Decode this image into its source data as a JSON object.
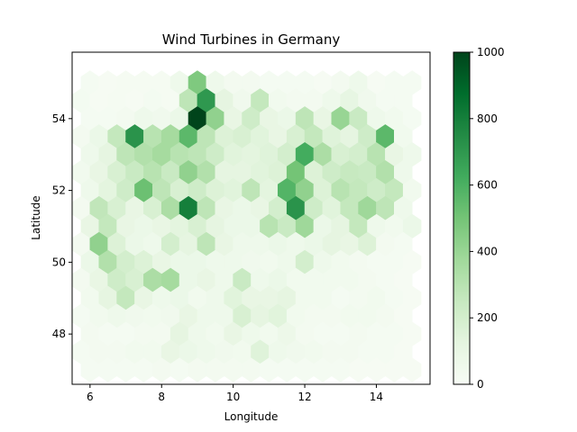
{
  "chart_data": {
    "type": "heatmap",
    "subtype": "hexbin",
    "title": "Wind Turbines in Germany",
    "xlabel": "Longitude",
    "ylabel": "Latitude",
    "xlim": [
      5.5,
      15.5
    ],
    "ylim": [
      46.6,
      55.85
    ],
    "xticks": [
      6,
      8,
      10,
      12,
      14
    ],
    "yticks": [
      48,
      50,
      52,
      54
    ],
    "grid": false,
    "colormap": "Greens",
    "color_range": [
      0,
      1000
    ],
    "colorbar": {
      "ticks": [
        0,
        200,
        400,
        600,
        800,
        1000
      ],
      "placement": "right"
    },
    "hex_spacing": {
      "dx": 0.5,
      "dy": 0.5
    },
    "cells": [
      [
        6,
        55,
        20
      ],
      [
        6.5,
        55,
        10
      ],
      [
        7,
        55,
        15
      ],
      [
        7.5,
        55,
        15
      ],
      [
        8,
        55,
        15
      ],
      [
        8.5,
        55,
        60
      ],
      [
        9,
        55,
        470
      ],
      [
        9.5,
        55,
        60
      ],
      [
        10,
        55,
        30
      ],
      [
        10.5,
        55,
        30
      ],
      [
        11,
        55,
        20
      ],
      [
        11.5,
        55,
        20
      ],
      [
        12,
        55,
        20
      ],
      [
        12.5,
        55,
        10
      ],
      [
        13,
        55,
        30
      ],
      [
        13.5,
        55,
        60
      ],
      [
        14,
        55,
        10
      ],
      [
        14.5,
        55,
        20
      ],
      [
        15,
        55,
        20
      ],
      [
        5.75,
        54.5,
        25
      ],
      [
        6.25,
        54.5,
        10
      ],
      [
        6.75,
        54.5,
        15
      ],
      [
        7.25,
        54.5,
        10
      ],
      [
        7.75,
        54.5,
        25
      ],
      [
        8.25,
        54.5,
        15
      ],
      [
        8.75,
        54.5,
        280
      ],
      [
        9.25,
        54.5,
        700
      ],
      [
        9.75,
        54.5,
        120
      ],
      [
        10.25,
        54.5,
        50
      ],
      [
        10.75,
        54.5,
        260
      ],
      [
        11.25,
        54.5,
        40
      ],
      [
        11.75,
        54.5,
        30
      ],
      [
        12.25,
        54.5,
        30
      ],
      [
        12.75,
        54.5,
        60
      ],
      [
        13.25,
        54.5,
        110
      ],
      [
        13.75,
        54.5,
        50
      ],
      [
        14.25,
        54.5,
        20
      ],
      [
        14.75,
        54.5,
        20
      ],
      [
        6,
        54,
        20
      ],
      [
        6.5,
        54,
        20
      ],
      [
        7,
        54,
        30
      ],
      [
        7.5,
        54,
        60
      ],
      [
        8,
        54,
        50
      ],
      [
        8.5,
        54,
        80
      ],
      [
        9,
        54,
        1000
      ],
      [
        9.5,
        54,
        420
      ],
      [
        10,
        54,
        100
      ],
      [
        10.5,
        54,
        220
      ],
      [
        11,
        54,
        100
      ],
      [
        11.5,
        54,
        80
      ],
      [
        12,
        54,
        280
      ],
      [
        12.5,
        54,
        100
      ],
      [
        13,
        54,
        400
      ],
      [
        13.5,
        54,
        240
      ],
      [
        14,
        54,
        60
      ],
      [
        14.5,
        54,
        40
      ],
      [
        15,
        54,
        20
      ],
      [
        5.75,
        53.5,
        30
      ],
      [
        6.25,
        53.5,
        80
      ],
      [
        6.75,
        53.5,
        260
      ],
      [
        7.25,
        53.5,
        720
      ],
      [
        7.75,
        53.5,
        300
      ],
      [
        8.25,
        53.5,
        360
      ],
      [
        8.75,
        53.5,
        560
      ],
      [
        9.25,
        53.5,
        280
      ],
      [
        9.75,
        53.5,
        160
      ],
      [
        10.25,
        53.5,
        180
      ],
      [
        10.75,
        53.5,
        140
      ],
      [
        11.25,
        53.5,
        100
      ],
      [
        11.75,
        53.5,
        180
      ],
      [
        12.25,
        53.5,
        260
      ],
      [
        12.75,
        53.5,
        150
      ],
      [
        13.25,
        53.5,
        120
      ],
      [
        13.75,
        53.5,
        220
      ],
      [
        14.25,
        53.5,
        560
      ],
      [
        14.75,
        53.5,
        40
      ],
      [
        6,
        53,
        60
      ],
      [
        6.5,
        53,
        120
      ],
      [
        7,
        53,
        280
      ],
      [
        7.5,
        53,
        320
      ],
      [
        8,
        53,
        360
      ],
      [
        8.5,
        53,
        300
      ],
      [
        9,
        53,
        280
      ],
      [
        9.5,
        53,
        220
      ],
      [
        10,
        53,
        140
      ],
      [
        10.5,
        53,
        130
      ],
      [
        11,
        53,
        150
      ],
      [
        11.5,
        53,
        200
      ],
      [
        12,
        53,
        620
      ],
      [
        12.5,
        53,
        340
      ],
      [
        13,
        53,
        180
      ],
      [
        13.5,
        53,
        200
      ],
      [
        14,
        53,
        300
      ],
      [
        14.5,
        53,
        100
      ],
      [
        15,
        53,
        60
      ],
      [
        5.75,
        52.5,
        40
      ],
      [
        6.25,
        52.5,
        100
      ],
      [
        6.75,
        52.5,
        180
      ],
      [
        7.25,
        52.5,
        240
      ],
      [
        7.75,
        52.5,
        300
      ],
      [
        8.25,
        52.5,
        240
      ],
      [
        8.75,
        52.5,
        420
      ],
      [
        9.25,
        52.5,
        320
      ],
      [
        9.75,
        52.5,
        120
      ],
      [
        10.25,
        52.5,
        120
      ],
      [
        10.75,
        52.5,
        140
      ],
      [
        11.25,
        52.5,
        160
      ],
      [
        11.75,
        52.5,
        500
      ],
      [
        12.25,
        52.5,
        160
      ],
      [
        12.75,
        52.5,
        220
      ],
      [
        13.25,
        52.5,
        250
      ],
      [
        13.75,
        52.5,
        240
      ],
      [
        14.25,
        52.5,
        320
      ],
      [
        14.75,
        52.5,
        60
      ],
      [
        6,
        52,
        60
      ],
      [
        6.5,
        52,
        130
      ],
      [
        7,
        52,
        220
      ],
      [
        7.5,
        52,
        520
      ],
      [
        8,
        52,
        280
      ],
      [
        8.5,
        52,
        180
      ],
      [
        9,
        52,
        220
      ],
      [
        9.5,
        52,
        160
      ],
      [
        10,
        52,
        140
      ],
      [
        10.5,
        52,
        280
      ],
      [
        11,
        52,
        130
      ],
      [
        11.5,
        52,
        580
      ],
      [
        12,
        52,
        420
      ],
      [
        12.5,
        52,
        160
      ],
      [
        13,
        52,
        300
      ],
      [
        13.5,
        52,
        260
      ],
      [
        14,
        52,
        220
      ],
      [
        14.5,
        52,
        260
      ],
      [
        15,
        52,
        40
      ],
      [
        5.75,
        51.5,
        30
      ],
      [
        6.25,
        51.5,
        270
      ],
      [
        6.75,
        51.5,
        180
      ],
      [
        7.25,
        51.5,
        100
      ],
      [
        7.75,
        51.5,
        180
      ],
      [
        8.25,
        51.5,
        340
      ],
      [
        8.75,
        51.5,
        800
      ],
      [
        9.25,
        51.5,
        280
      ],
      [
        9.75,
        51.5,
        100
      ],
      [
        10.25,
        51.5,
        80
      ],
      [
        10.75,
        51.5,
        100
      ],
      [
        11.25,
        51.5,
        200
      ],
      [
        11.75,
        51.5,
        720
      ],
      [
        12.25,
        51.5,
        220
      ],
      [
        12.75,
        51.5,
        140
      ],
      [
        13.25,
        51.5,
        260
      ],
      [
        13.75,
        51.5,
        380
      ],
      [
        14.25,
        51.5,
        280
      ],
      [
        14.75,
        51.5,
        60
      ],
      [
        6,
        51,
        100
      ],
      [
        6.5,
        51,
        260
      ],
      [
        7,
        51,
        100
      ],
      [
        7.5,
        51,
        80
      ],
      [
        8,
        51,
        100
      ],
      [
        8.5,
        51,
        130
      ],
      [
        9,
        51,
        180
      ],
      [
        9.5,
        51,
        120
      ],
      [
        10,
        51,
        80
      ],
      [
        10.5,
        51,
        80
      ],
      [
        11,
        51,
        300
      ],
      [
        11.5,
        51,
        240
      ],
      [
        12,
        51,
        380
      ],
      [
        12.5,
        51,
        80
      ],
      [
        13,
        51,
        120
      ],
      [
        13.5,
        51,
        260
      ],
      [
        14,
        51,
        60
      ],
      [
        14.5,
        51,
        40
      ],
      [
        15,
        51,
        80
      ],
      [
        5.75,
        50.5,
        30
      ],
      [
        6.25,
        50.5,
        420
      ],
      [
        6.75,
        50.5,
        160
      ],
      [
        7.25,
        50.5,
        80
      ],
      [
        7.75,
        50.5,
        60
      ],
      [
        8.25,
        50.5,
        200
      ],
      [
        8.75,
        50.5,
        120
      ],
      [
        9.25,
        50.5,
        280
      ],
      [
        9.75,
        50.5,
        100
      ],
      [
        10.25,
        50.5,
        60
      ],
      [
        10.75,
        50.5,
        60
      ],
      [
        11.25,
        50.5,
        80
      ],
      [
        11.75,
        50.5,
        60
      ],
      [
        12.25,
        50.5,
        80
      ],
      [
        12.75,
        50.5,
        120
      ],
      [
        13.25,
        50.5,
        100
      ],
      [
        13.75,
        50.5,
        160
      ],
      [
        14.25,
        50.5,
        30
      ],
      [
        14.75,
        50.5,
        20
      ],
      [
        6,
        50,
        80
      ],
      [
        6.5,
        50,
        320
      ],
      [
        7,
        50,
        200
      ],
      [
        7.5,
        50,
        160
      ],
      [
        8,
        50,
        100
      ],
      [
        8.5,
        50,
        80
      ],
      [
        9,
        50,
        80
      ],
      [
        9.5,
        50,
        60
      ],
      [
        10,
        50,
        60
      ],
      [
        10.5,
        50,
        50
      ],
      [
        11,
        50,
        40
      ],
      [
        11.5,
        50,
        60
      ],
      [
        12,
        50,
        200
      ],
      [
        12.5,
        50,
        60
      ],
      [
        13,
        50,
        40
      ],
      [
        13.5,
        50,
        30
      ],
      [
        14,
        50,
        20
      ],
      [
        14.5,
        50,
        20
      ],
      [
        15,
        50,
        10
      ],
      [
        5.75,
        49.5,
        30
      ],
      [
        6.25,
        49.5,
        100
      ],
      [
        6.75,
        49.5,
        220
      ],
      [
        7.25,
        49.5,
        180
      ],
      [
        7.75,
        49.5,
        340
      ],
      [
        8.25,
        49.5,
        360
      ],
      [
        8.75,
        49.5,
        80
      ],
      [
        9.25,
        49.5,
        100
      ],
      [
        9.75,
        49.5,
        60
      ],
      [
        10.25,
        49.5,
        240
      ],
      [
        10.75,
        49.5,
        60
      ],
      [
        11.25,
        49.5,
        80
      ],
      [
        11.75,
        49.5,
        40
      ],
      [
        12.25,
        49.5,
        40
      ],
      [
        12.75,
        49.5,
        40
      ],
      [
        13.25,
        49.5,
        40
      ],
      [
        13.75,
        49.5,
        30
      ],
      [
        14.25,
        49.5,
        20
      ],
      [
        14.75,
        49.5,
        10
      ],
      [
        6,
        49,
        40
      ],
      [
        6.5,
        49,
        120
      ],
      [
        7,
        49,
        260
      ],
      [
        7.5,
        49,
        100
      ],
      [
        8,
        49,
        60
      ],
      [
        8.5,
        49,
        80
      ],
      [
        9,
        49,
        40
      ],
      [
        9.5,
        49,
        60
      ],
      [
        10,
        49,
        140
      ],
      [
        10.5,
        49,
        100
      ],
      [
        11,
        49,
        100
      ],
      [
        11.5,
        49,
        120
      ],
      [
        12,
        49,
        40
      ],
      [
        12.5,
        49,
        40
      ],
      [
        13,
        49,
        20
      ],
      [
        13.5,
        49,
        30
      ],
      [
        14,
        49,
        40
      ],
      [
        14.5,
        49,
        20
      ],
      [
        15,
        49,
        10
      ],
      [
        5.75,
        48.5,
        20
      ],
      [
        6.25,
        48.5,
        40
      ],
      [
        6.75,
        48.5,
        60
      ],
      [
        7.25,
        48.5,
        50
      ],
      [
        7.75,
        48.5,
        40
      ],
      [
        8.25,
        48.5,
        50
      ],
      [
        8.75,
        48.5,
        100
      ],
      [
        9.25,
        48.5,
        60
      ],
      [
        9.75,
        48.5,
        60
      ],
      [
        10.25,
        48.5,
        180
      ],
      [
        10.75,
        48.5,
        120
      ],
      [
        11.25,
        48.5,
        140
      ],
      [
        11.75,
        48.5,
        40
      ],
      [
        12.25,
        48.5,
        30
      ],
      [
        12.75,
        48.5,
        30
      ],
      [
        13.25,
        48.5,
        40
      ],
      [
        13.75,
        48.5,
        40
      ],
      [
        14.25,
        48.5,
        30
      ],
      [
        14.75,
        48.5,
        10
      ],
      [
        6,
        48,
        30
      ],
      [
        6.5,
        48,
        20
      ],
      [
        7,
        48,
        20
      ],
      [
        7.5,
        48,
        30
      ],
      [
        8,
        48,
        30
      ],
      [
        8.5,
        48,
        120
      ],
      [
        9,
        48,
        60
      ],
      [
        9.5,
        48,
        40
      ],
      [
        10,
        48,
        100
      ],
      [
        10.5,
        48,
        60
      ],
      [
        11,
        48,
        40
      ],
      [
        11.5,
        48,
        70
      ],
      [
        12,
        48,
        30
      ],
      [
        12.5,
        48,
        20
      ],
      [
        13,
        48,
        20
      ],
      [
        13.5,
        48,
        30
      ],
      [
        14,
        48,
        20
      ],
      [
        14.5,
        48,
        20
      ],
      [
        15,
        48,
        10
      ],
      [
        5.75,
        47.5,
        20
      ],
      [
        6.25,
        47.5,
        30
      ],
      [
        6.75,
        47.5,
        30
      ],
      [
        7.25,
        47.5,
        40
      ],
      [
        7.75,
        47.5,
        40
      ],
      [
        8.25,
        47.5,
        100
      ],
      [
        8.75,
        47.5,
        80
      ],
      [
        9.25,
        47.5,
        60
      ],
      [
        9.75,
        47.5,
        50
      ],
      [
        10.25,
        47.5,
        40
      ],
      [
        10.75,
        47.5,
        150
      ],
      [
        11.25,
        47.5,
        60
      ],
      [
        11.75,
        47.5,
        50
      ],
      [
        12.25,
        47.5,
        40
      ],
      [
        12.75,
        47.5,
        30
      ],
      [
        13.25,
        47.5,
        30
      ],
      [
        13.75,
        47.5,
        20
      ],
      [
        14.25,
        47.5,
        20
      ],
      [
        14.75,
        47.5,
        10
      ],
      [
        6,
        47,
        20
      ],
      [
        6.5,
        47,
        20
      ],
      [
        7,
        47,
        20
      ],
      [
        7.5,
        47,
        20
      ],
      [
        8,
        47,
        30
      ],
      [
        8.5,
        47,
        20
      ],
      [
        9,
        47,
        30
      ],
      [
        9.5,
        47,
        30
      ],
      [
        10,
        47,
        30
      ],
      [
        10.5,
        47,
        30
      ],
      [
        11,
        47,
        20
      ],
      [
        11.5,
        47,
        20
      ],
      [
        12,
        47,
        20
      ],
      [
        12.5,
        47,
        20
      ],
      [
        13,
        47,
        20
      ],
      [
        13.5,
        47,
        10
      ],
      [
        14,
        47,
        10
      ],
      [
        14.5,
        47,
        10
      ],
      [
        15,
        47,
        10
      ]
    ]
  }
}
